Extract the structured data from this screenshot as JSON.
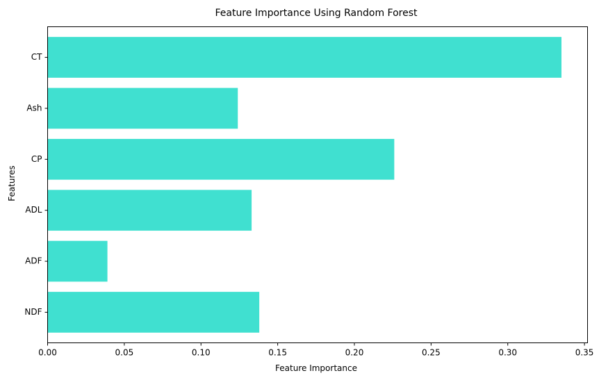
{
  "chart_data": {
    "type": "bar",
    "orientation": "horizontal",
    "title": "Feature Importance Using Random Forest",
    "xlabel": "Feature Importance",
    "ylabel": "Features",
    "categories": [
      "NDF",
      "ADF",
      "ADL",
      "CP",
      "Ash",
      "CT"
    ],
    "values": [
      0.138,
      0.039,
      0.133,
      0.226,
      0.124,
      0.335
    ],
    "xlim": [
      0.0,
      0.352
    ],
    "xticks": [
      "0.00",
      "0.05",
      "0.10",
      "0.15",
      "0.20",
      "0.25",
      "0.30",
      "0.35"
    ],
    "bar_color": "#40E0D0",
    "grid": false,
    "legend": "none"
  }
}
